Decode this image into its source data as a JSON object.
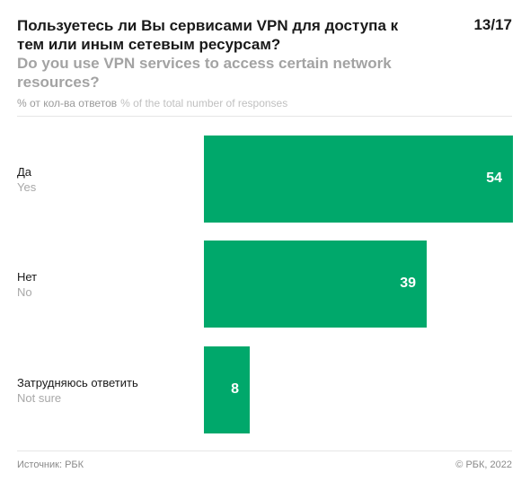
{
  "header": {
    "title_ru": "Пользуетесь ли Вы сервисами VPN для доступа к тем или иным сетевым ресурсам?",
    "title_en": "Do you use VPN services to access certain network resources?",
    "page_counter": "13/17",
    "units_ru": "% от кол-ва ответов",
    "units_en": "% of the total number of responses"
  },
  "footer": {
    "source": "Источник: РБК",
    "copyright": "© РБК, 2022"
  },
  "colors": {
    "bar": "#00a86b"
  },
  "chart_data": {
    "type": "bar",
    "orientation": "horizontal",
    "categories": [
      {
        "ru": "Да",
        "en": "Yes"
      },
      {
        "ru": "Нет",
        "en": "No"
      },
      {
        "ru": "Затрудняюсь ответить",
        "en": "Not sure"
      }
    ],
    "values": [
      54,
      39,
      8
    ],
    "xlim": [
      0,
      54
    ],
    "grid": false,
    "legend": "none"
  }
}
